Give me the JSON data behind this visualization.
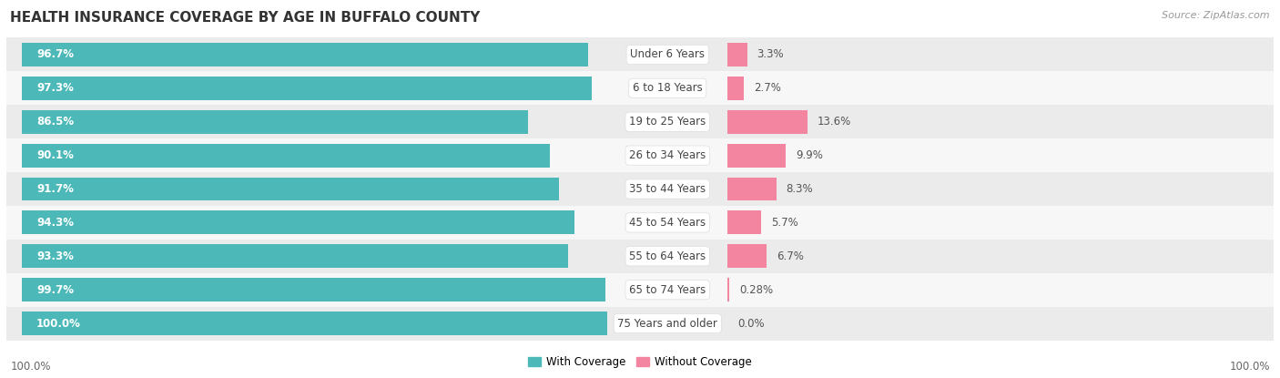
{
  "title": "HEALTH INSURANCE COVERAGE BY AGE IN BUFFALO COUNTY",
  "source": "Source: ZipAtlas.com",
  "categories": [
    "Under 6 Years",
    "6 to 18 Years",
    "19 to 25 Years",
    "26 to 34 Years",
    "35 to 44 Years",
    "45 to 54 Years",
    "55 to 64 Years",
    "65 to 74 Years",
    "75 Years and older"
  ],
  "with_coverage": [
    96.7,
    97.3,
    86.5,
    90.1,
    91.7,
    94.3,
    93.3,
    99.7,
    100.0
  ],
  "without_coverage": [
    3.3,
    2.7,
    13.6,
    9.9,
    8.3,
    5.7,
    6.7,
    0.28,
    0.0
  ],
  "with_coverage_labels": [
    "96.7%",
    "97.3%",
    "86.5%",
    "90.1%",
    "91.7%",
    "94.3%",
    "93.3%",
    "99.7%",
    "100.0%"
  ],
  "without_coverage_labels": [
    "3.3%",
    "2.7%",
    "13.6%",
    "9.9%",
    "8.3%",
    "5.7%",
    "6.7%",
    "0.28%",
    "0.0%"
  ],
  "color_with": "#4db8b8",
  "color_without": "#f485a0",
  "background": "#ffffff",
  "row_bg_odd": "#ebebeb",
  "row_bg_even": "#f7f7f7",
  "legend_with": "With Coverage",
  "legend_without": "Without Coverage",
  "x_left_label": "100.0%",
  "x_right_label": "100.0%",
  "title_fontsize": 11,
  "label_fontsize": 8.5,
  "cat_fontsize": 8.5,
  "source_fontsize": 8
}
